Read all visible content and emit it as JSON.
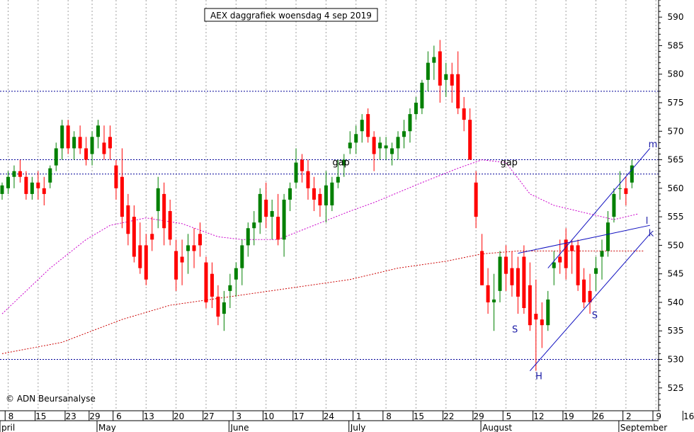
{
  "chart_data": {
    "type": "candlestick",
    "title": "AEX daggrafiek woensdag 4 sep 2019",
    "copyright": "© ADN Beursanalyse",
    "ylim": [
      521,
      593
    ],
    "y_ticks": [
      525,
      530,
      535,
      540,
      545,
      550,
      555,
      560,
      565,
      570,
      575,
      580,
      585,
      590
    ],
    "x_ticks": [
      {
        "label": "8",
        "i": 1
      },
      {
        "label": "15",
        "i": 6
      },
      {
        "label": "23",
        "i": 11
      },
      {
        "label": "29",
        "i": 15
      },
      {
        "label": "6",
        "i": 19
      },
      {
        "label": "13",
        "i": 24
      },
      {
        "label": "20",
        "i": 29
      },
      {
        "label": "27",
        "i": 34
      },
      {
        "label": "3",
        "i": 39
      },
      {
        "label": "10",
        "i": 44
      },
      {
        "label": "17",
        "i": 49
      },
      {
        "label": "24",
        "i": 54
      },
      {
        "label": "1",
        "i": 59
      },
      {
        "label": "8",
        "i": 64
      },
      {
        "label": "15",
        "i": 69
      },
      {
        "label": "22",
        "i": 74
      },
      {
        "label": "29",
        "i": 79
      },
      {
        "label": "5",
        "i": 84
      },
      {
        "label": "12",
        "i": 89
      },
      {
        "label": "19",
        "i": 94
      },
      {
        "label": "26",
        "i": 99
      },
      {
        "label": "2",
        "i": 104
      },
      {
        "label": "9",
        "i": 109
      },
      {
        "label": "16",
        "i": 114
      }
    ],
    "month_labels": [
      {
        "label": "pril",
        "i": 0
      },
      {
        "label": "May",
        "i": 17
      },
      {
        "label": "June",
        "i": 39
      },
      {
        "label": "July",
        "i": 59
      },
      {
        "label": "August",
        "i": 81
      },
      {
        "label": "September",
        "i": 104
      }
    ],
    "candles": [
      [
        559,
        561,
        558,
        560.5
      ],
      [
        560,
        563,
        559,
        562
      ],
      [
        562,
        564,
        560,
        563
      ],
      [
        563,
        565,
        561,
        562
      ],
      [
        562,
        563,
        558,
        559
      ],
      [
        559,
        562,
        558,
        561
      ],
      [
        561,
        563,
        558,
        560
      ],
      [
        560,
        562,
        557,
        559
      ],
      [
        561,
        564,
        560,
        563.5
      ],
      [
        564,
        568,
        563,
        567
      ],
      [
        567,
        572,
        565,
        571
      ],
      [
        571,
        572,
        566,
        567
      ],
      [
        567,
        570,
        565,
        569
      ],
      [
        569,
        571,
        566,
        567
      ],
      [
        567,
        569,
        564,
        565
      ],
      [
        566,
        570,
        564,
        569
      ],
      [
        569,
        572,
        567,
        571
      ],
      [
        568,
        571,
        565,
        566
      ],
      [
        569,
        571,
        565,
        567
      ],
      [
        564,
        565,
        558,
        560
      ],
      [
        562,
        567,
        553,
        555
      ],
      [
        557,
        559,
        550,
        552
      ],
      [
        555,
        557,
        547,
        548
      ],
      [
        550,
        554,
        545,
        546
      ],
      [
        550,
        552,
        543,
        544
      ],
      [
        552,
        555,
        549,
        551
      ],
      [
        556,
        562,
        553,
        560
      ],
      [
        559,
        561,
        550,
        553
      ],
      [
        556,
        558,
        550,
        551
      ],
      [
        549,
        551,
        542,
        544
      ],
      [
        548,
        551,
        543,
        547
      ],
      [
        549,
        552,
        545,
        550
      ],
      [
        550,
        553,
        546,
        549
      ],
      [
        552,
        554,
        548,
        550
      ],
      [
        547,
        548,
        539,
        540
      ],
      [
        545,
        547,
        539,
        541
      ],
      [
        541,
        543,
        536,
        537.5
      ],
      [
        538,
        542,
        535,
        540
      ],
      [
        542,
        545,
        539,
        543
      ],
      [
        544,
        547,
        541,
        546
      ],
      [
        546,
        551,
        543,
        550
      ],
      [
        550,
        554,
        548,
        553
      ],
      [
        553,
        556,
        550,
        554
      ],
      [
        554,
        560,
        552,
        559
      ],
      [
        558,
        561,
        553,
        555
      ],
      [
        555,
        558,
        551,
        556
      ],
      [
        555,
        559,
        550,
        551
      ],
      [
        551,
        559,
        548,
        558
      ],
      [
        558,
        561,
        556,
        560
      ],
      [
        561,
        567,
        560,
        564.5
      ],
      [
        565,
        566,
        561,
        563
      ],
      [
        563,
        565,
        558,
        560
      ],
      [
        560,
        562,
        556,
        558
      ],
      [
        559,
        560,
        555,
        557
      ],
      [
        557,
        563,
        554,
        560.5
      ],
      [
        557,
        562,
        556,
        561
      ],
      [
        561,
        565,
        560,
        562
      ],
      [
        564,
        566,
        562,
        565
      ],
      [
        567,
        570,
        566,
        568
      ],
      [
        568,
        571,
        566,
        569.5
      ],
      [
        570,
        573,
        568,
        572
      ],
      [
        573,
        574,
        568,
        569
      ],
      [
        569,
        570,
        563,
        566
      ],
      [
        567,
        569,
        565,
        568
      ],
      [
        567,
        569,
        565,
        567.5
      ],
      [
        566,
        568,
        564,
        567
      ],
      [
        567,
        570,
        565,
        569
      ],
      [
        569,
        572,
        567,
        570
      ],
      [
        570,
        574,
        568,
        573
      ],
      [
        573,
        576,
        572,
        575
      ],
      [
        574,
        579,
        573,
        578.5
      ],
      [
        579,
        584,
        577,
        582
      ],
      [
        582,
        585,
        579,
        583
      ],
      [
        584,
        586,
        575,
        578
      ],
      [
        579,
        582,
        576,
        580
      ],
      [
        580,
        582,
        575,
        578
      ],
      [
        580,
        584,
        573,
        574
      ],
      [
        574,
        576,
        570,
        572
      ],
      [
        572,
        574,
        565,
        565
      ],
      [
        561,
        563,
        553,
        555
      ],
      [
        549,
        552,
        543,
        543
      ],
      [
        543,
        546,
        538,
        540
      ],
      [
        540,
        545,
        535,
        540.5
      ],
      [
        542,
        549,
        540,
        548
      ],
      [
        548,
        550,
        542,
        545
      ],
      [
        546,
        549,
        541,
        543
      ],
      [
        546,
        548,
        538,
        541
      ],
      [
        548,
        550,
        538,
        539
      ],
      [
        543,
        547,
        535,
        536
      ],
      [
        538,
        544,
        528,
        537
      ],
      [
        537,
        540,
        532,
        536
      ],
      [
        536,
        542,
        535,
        540.5
      ],
      [
        546,
        549,
        543,
        547
      ],
      [
        548,
        551,
        545,
        547
      ],
      [
        551,
        553,
        544,
        546
      ],
      [
        550,
        551,
        545,
        549
      ],
      [
        550,
        551,
        542,
        543
      ],
      [
        544,
        546,
        539,
        540
      ],
      [
        542,
        545,
        538,
        540
      ],
      [
        545,
        548,
        542,
        546
      ],
      [
        548,
        551,
        544,
        549
      ],
      [
        549,
        556,
        548,
        554
      ],
      [
        555,
        560,
        554,
        559
      ],
      [
        560,
        563,
        558,
        560
      ],
      [
        560,
        562,
        557,
        559
      ],
      [
        561,
        565,
        560,
        564
      ]
    ],
    "hlines": [
      {
        "y": 577.0,
        "color": "#000099"
      },
      {
        "y": 565.0,
        "color": "#000099"
      },
      {
        "y": 562.5,
        "color": "#000099"
      },
      {
        "y": 530.0,
        "color": "#000099"
      }
    ],
    "ma_long": [
      [
        0,
        531
      ],
      [
        10,
        533
      ],
      [
        20,
        537
      ],
      [
        28,
        539.5
      ],
      [
        38,
        541
      ],
      [
        48,
        542.5
      ],
      [
        58,
        544
      ],
      [
        66,
        546
      ],
      [
        74,
        547.2
      ],
      [
        80,
        548.5
      ],
      [
        86,
        549
      ],
      [
        94,
        549
      ],
      [
        100,
        549
      ],
      [
        107,
        549
      ]
    ],
    "ma_short": [
      [
        0,
        538
      ],
      [
        8,
        546
      ],
      [
        14,
        551
      ],
      [
        18,
        553.5
      ],
      [
        24,
        554.8
      ],
      [
        30,
        553.8
      ],
      [
        36,
        551.5
      ],
      [
        40,
        551
      ],
      [
        46,
        551
      ],
      [
        52,
        553.5
      ],
      [
        58,
        556
      ],
      [
        62,
        557.5
      ],
      [
        70,
        561
      ],
      [
        76,
        563.5
      ],
      [
        80,
        565
      ],
      [
        84,
        564.5
      ],
      [
        88,
        559
      ],
      [
        92,
        557
      ],
      [
        98,
        555.5
      ],
      [
        102,
        554.5
      ],
      [
        106,
        555.5
      ]
    ],
    "trendlines": [
      {
        "from": [
          86,
          548.6
        ],
        "to": [
          108,
          553.5
        ],
        "color": "#1010c0"
      },
      {
        "from": [
          88,
          528
        ],
        "to": [
          108,
          552
        ],
        "color": "#1010c0"
      },
      {
        "from": [
          91,
          546
        ],
        "to": [
          108,
          567
        ],
        "color": "#1010c0"
      }
    ],
    "annotations": [
      {
        "text": "gap",
        "i": 56.5,
        "y": 564,
        "color": "#000000"
      },
      {
        "text": "gap",
        "i": 84.5,
        "y": 564,
        "color": "#000000"
      },
      {
        "text": "S",
        "i": 85.5,
        "y": 534.7,
        "color": "#1a1aa6"
      },
      {
        "text": "H",
        "i": 89.5,
        "y": 526.5,
        "color": "#1a1aa6"
      },
      {
        "text": "S",
        "i": 98.8,
        "y": 537.2,
        "color": "#1a1aa6"
      },
      {
        "text": "m",
        "i": 108.5,
        "y": 567.2,
        "color": "#1a1aa6"
      },
      {
        "text": "l",
        "i": 107.5,
        "y": 553.8,
        "color": "#1a1aa6"
      },
      {
        "text": "k",
        "i": 108.2,
        "y": 551.6,
        "color": "#1a1aa6"
      }
    ],
    "colors": {
      "up": "#008000",
      "down": "#ff0000",
      "ma_long": "#cc0000",
      "ma_short": "#cc00cc"
    }
  }
}
